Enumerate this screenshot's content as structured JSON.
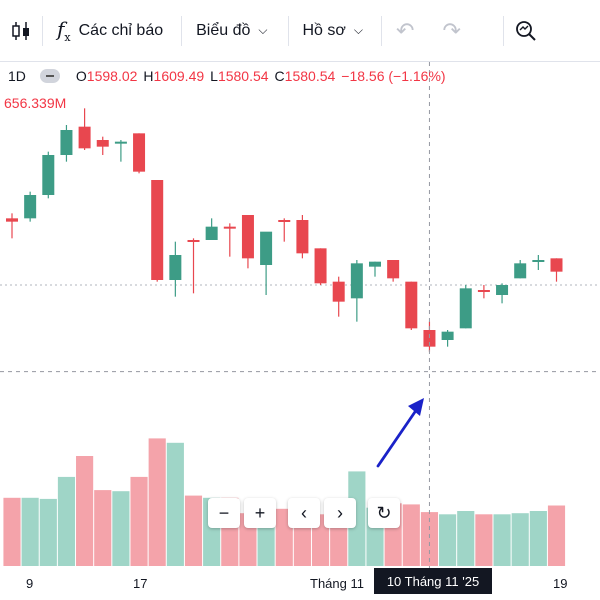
{
  "toolbar": {
    "indicators_label": "Các chỉ báo",
    "chart_type_label": "Biểu đồ",
    "profile_label": "Hồ sơ"
  },
  "legend": {
    "interval": "1D",
    "open_label": "O",
    "open": "1598.02",
    "high_label": "H",
    "high": "1609.49",
    "low_label": "L",
    "low": "1580.54",
    "close_label": "C",
    "close": "1580.54",
    "change": "−18.56 (−1.16%)"
  },
  "volume_label": "656.339M",
  "time_axis": {
    "ticks": [
      "9",
      "17",
      "Tháng 11",
      "19"
    ],
    "crosshair_label": "10 Tháng 11 '25"
  },
  "colors": {
    "up": "#3d9c86",
    "down": "#e8474f",
    "vol_up": "#9fd5c7",
    "vol_down": "#f4a3aa",
    "annotation_arrow": "#1a22c8"
  },
  "icons": [
    "candles-icon",
    "fx-icon",
    "chevron-down-icon",
    "undo-icon",
    "redo-icon",
    "search-icon",
    "zoom-out-icon",
    "zoom-in-icon",
    "scroll-left-icon",
    "scroll-right-icon",
    "reset-icon"
  ],
  "chart_data": {
    "type": "candlestick",
    "price_min": 1540,
    "price_max": 1720,
    "candles": [
      {
        "o": 1650,
        "h": 1655,
        "l": 1640,
        "c": 1652,
        "dir": "down"
      },
      {
        "o": 1652,
        "h": 1668,
        "l": 1650,
        "c": 1666,
        "dir": "up"
      },
      {
        "o": 1666,
        "h": 1692,
        "l": 1664,
        "c": 1690,
        "dir": "up"
      },
      {
        "o": 1690,
        "h": 1708,
        "l": 1686,
        "c": 1705,
        "dir": "up"
      },
      {
        "o": 1707,
        "h": 1718,
        "l": 1693,
        "c": 1694,
        "dir": "down"
      },
      {
        "o": 1695,
        "h": 1701,
        "l": 1690,
        "c": 1699,
        "dir": "down"
      },
      {
        "o": 1697,
        "h": 1699,
        "l": 1686,
        "c": 1698,
        "dir": "up"
      },
      {
        "o": 1703,
        "h": 1703,
        "l": 1679,
        "c": 1680,
        "dir": "down"
      },
      {
        "o": 1675,
        "h": 1675,
        "l": 1614,
        "c": 1615,
        "dir": "down"
      },
      {
        "o": 1615,
        "h": 1638,
        "l": 1605,
        "c": 1630,
        "dir": "up"
      },
      {
        "o": 1638,
        "h": 1640,
        "l": 1607,
        "c": 1639,
        "dir": "down"
      },
      {
        "o": 1639,
        "h": 1652,
        "l": 1639,
        "c": 1647,
        "dir": "up"
      },
      {
        "o": 1646,
        "h": 1649,
        "l": 1629,
        "c": 1647,
        "dir": "down"
      },
      {
        "o": 1654,
        "h": 1654,
        "l": 1622,
        "c": 1628,
        "dir": "down"
      },
      {
        "o": 1624,
        "h": 1643,
        "l": 1606,
        "c": 1644,
        "dir": "up"
      },
      {
        "o": 1651,
        "h": 1652,
        "l": 1638,
        "c": 1650,
        "dir": "down"
      },
      {
        "o": 1651,
        "h": 1654,
        "l": 1628,
        "c": 1631,
        "dir": "down"
      },
      {
        "o": 1634,
        "h": 1634,
        "l": 1612,
        "c": 1613,
        "dir": "down"
      },
      {
        "o": 1614,
        "h": 1617,
        "l": 1593,
        "c": 1602,
        "dir": "down"
      },
      {
        "o": 1604,
        "h": 1627,
        "l": 1590,
        "c": 1625,
        "dir": "up"
      },
      {
        "o": 1623,
        "h": 1626,
        "l": 1617,
        "c": 1626,
        "dir": "up"
      },
      {
        "o": 1627,
        "h": 1627,
        "l": 1614,
        "c": 1616,
        "dir": "down"
      },
      {
        "o": 1614,
        "h": 1614,
        "l": 1585,
        "c": 1586,
        "dir": "down"
      },
      {
        "o": 1585,
        "h": 1590,
        "l": 1572,
        "c": 1575,
        "dir": "down"
      },
      {
        "o": 1579,
        "h": 1585,
        "l": 1575,
        "c": 1584,
        "dir": "up"
      },
      {
        "o": 1586,
        "h": 1612,
        "l": 1586,
        "c": 1610,
        "dir": "up"
      },
      {
        "o": 1609,
        "h": 1612,
        "l": 1604,
        "c": 1609,
        "dir": "down"
      },
      {
        "o": 1606,
        "h": 1613,
        "l": 1601,
        "c": 1612,
        "dir": "up"
      },
      {
        "o": 1616,
        "h": 1627,
        "l": 1616,
        "c": 1625,
        "dir": "up"
      },
      {
        "o": 1626,
        "h": 1630,
        "l": 1621,
        "c": 1627,
        "dir": "up"
      },
      {
        "o": 1628,
        "h": 1628,
        "l": 1614,
        "c": 1620,
        "dir": "down"
      }
    ],
    "volumes": [
      {
        "v": 0.62,
        "dir": "down"
      },
      {
        "v": 0.62,
        "dir": "up"
      },
      {
        "v": 0.61,
        "dir": "up"
      },
      {
        "v": 0.81,
        "dir": "up"
      },
      {
        "v": 1.0,
        "dir": "down"
      },
      {
        "v": 0.69,
        "dir": "down"
      },
      {
        "v": 0.68,
        "dir": "up"
      },
      {
        "v": 0.81,
        "dir": "down"
      },
      {
        "v": 1.16,
        "dir": "down"
      },
      {
        "v": 1.12,
        "dir": "up"
      },
      {
        "v": 0.64,
        "dir": "down"
      },
      {
        "v": 0.62,
        "dir": "up"
      },
      {
        "v": 0.62,
        "dir": "down"
      },
      {
        "v": 0.48,
        "dir": "down"
      },
      {
        "v": 0.52,
        "dir": "up"
      },
      {
        "v": 0.52,
        "dir": "down"
      },
      {
        "v": 0.46,
        "dir": "down"
      },
      {
        "v": 0.47,
        "dir": "down"
      },
      {
        "v": 0.56,
        "dir": "down"
      },
      {
        "v": 0.86,
        "dir": "up"
      },
      {
        "v": 0.53,
        "dir": "up"
      },
      {
        "v": 0.57,
        "dir": "down"
      },
      {
        "v": 0.56,
        "dir": "down"
      },
      {
        "v": 0.49,
        "dir": "down"
      },
      {
        "v": 0.47,
        "dir": "up"
      },
      {
        "v": 0.5,
        "dir": "up"
      },
      {
        "v": 0.47,
        "dir": "down"
      },
      {
        "v": 0.47,
        "dir": "up"
      },
      {
        "v": 0.48,
        "dir": "up"
      },
      {
        "v": 0.5,
        "dir": "up"
      },
      {
        "v": 0.55,
        "dir": "down"
      }
    ],
    "reference_price": 1612,
    "crosshair_price": 1560
  }
}
